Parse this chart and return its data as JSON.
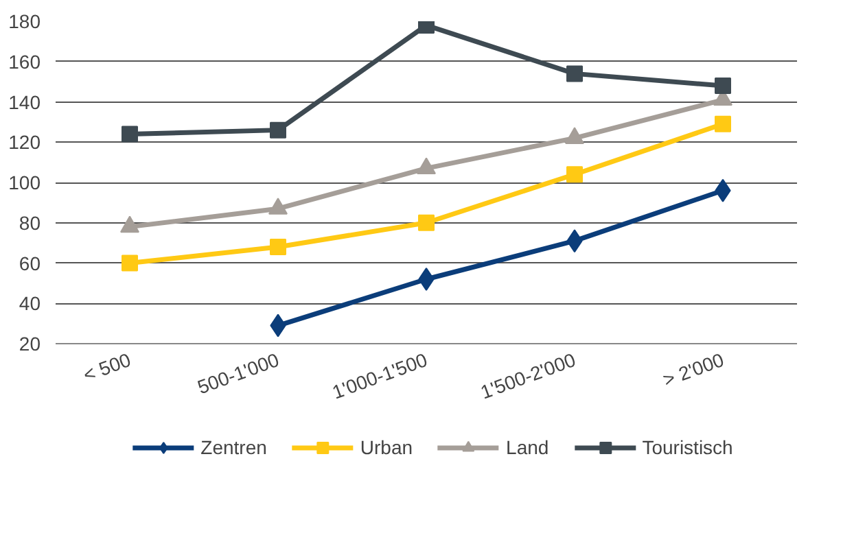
{
  "chart_data": {
    "type": "line",
    "categories": [
      "< 500",
      "500-1'000",
      "1'000-1'500",
      "1'500-2'000",
      "> 2'000"
    ],
    "series": [
      {
        "name": "Zentren",
        "color": "#0b3d7a",
        "marker": "diamond",
        "values": [
          null,
          29,
          52,
          71,
          96
        ]
      },
      {
        "name": "Urban",
        "color": "#ffc914",
        "marker": "square",
        "values": [
          60,
          68,
          80,
          104,
          129
        ]
      },
      {
        "name": "Land",
        "color": "#a59e98",
        "marker": "triangle",
        "values": [
          78,
          87,
          107,
          122,
          141
        ]
      },
      {
        "name": "Touristisch",
        "color": "#3e4a52",
        "marker": "square",
        "values": [
          124,
          126,
          178,
          154,
          148
        ]
      }
    ],
    "ylim": [
      20,
      180
    ],
    "yticks": [
      20,
      40,
      60,
      80,
      100,
      120,
      140,
      160,
      180
    ],
    "grid": "y",
    "legend": "bottom",
    "line_style": "solid"
  }
}
